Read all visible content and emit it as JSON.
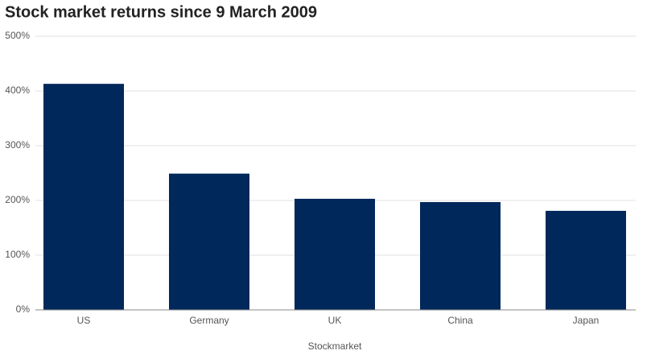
{
  "chart_data": {
    "type": "bar",
    "title": "Stock market returns since 9 March 2009",
    "x_label": "Stockmarket",
    "categories": [
      "US",
      "Germany",
      "UK",
      "China",
      "Japan"
    ],
    "values": [
      413,
      249,
      203,
      197,
      181
    ],
    "color": "#00285a",
    "ylim": [
      0,
      500
    ],
    "yticks": [
      {
        "value": 0,
        "label": "0%"
      },
      {
        "value": 100,
        "label": "100%"
      },
      {
        "value": 200,
        "label": "200%"
      },
      {
        "value": 300,
        "label": "300%"
      },
      {
        "value": 400,
        "label": "400%"
      },
      {
        "value": 500,
        "label": "500%"
      }
    ],
    "grid": true
  }
}
